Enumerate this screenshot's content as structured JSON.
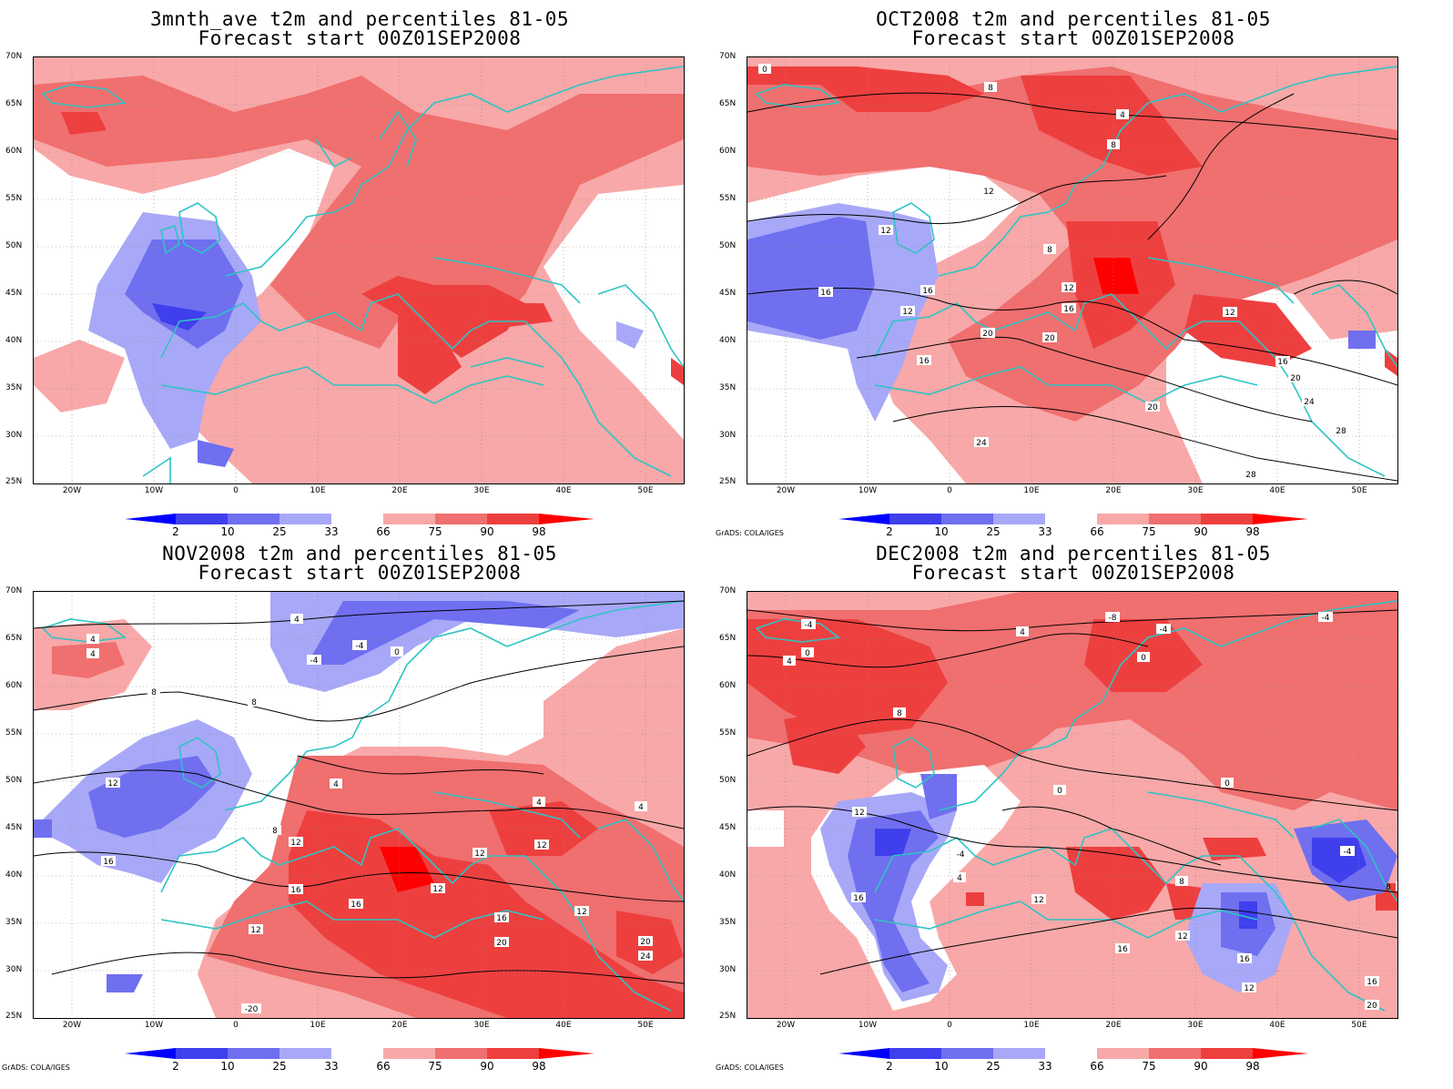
{
  "panels": [
    {
      "title": "3mnth_ave t2m and percentiles 81-05",
      "subtitle": "Forecast start 00Z01SEP2008",
      "contour_labels": []
    },
    {
      "title": "OCT2008 t2m and percentiles 81-05",
      "subtitle": "Forecast start 00Z01SEP2008",
      "contour_labels": [
        "0",
        "8",
        "4",
        "8",
        "12",
        "12",
        "8",
        "16",
        "16",
        "12",
        "20",
        "20",
        "16",
        "12",
        "16",
        "12",
        "16",
        "20",
        "24",
        "28",
        "20",
        "24",
        "28"
      ]
    },
    {
      "title": "NOV2008 t2m and percentiles 81-05",
      "subtitle": "Forecast start 00Z01SEP2008",
      "contour_labels": [
        "4",
        "4",
        "4",
        "-4",
        "-4",
        "0",
        "8",
        "8",
        "12",
        "4",
        "4",
        "4",
        "8",
        "12",
        "12",
        "12",
        "12",
        "16",
        "16",
        "16",
        "12",
        "16",
        "20",
        "12",
        "20",
        "24",
        "-20"
      ]
    },
    {
      "title": "DEC2008 t2m and percentiles 81-05",
      "subtitle": "Forecast start 00Z01SEP2008",
      "contour_labels": [
        "-4",
        "0",
        "4",
        "-8",
        "-4",
        "-4",
        "4",
        "0",
        "8",
        "0",
        "0",
        "12",
        "-4",
        "4",
        "8",
        "16",
        "12",
        "16",
        "12",
        "16",
        "-4",
        "8",
        "12",
        "16",
        "20"
      ]
    }
  ],
  "lat_labels": [
    "70N",
    "65N",
    "60N",
    "55N",
    "50N",
    "45N",
    "40N",
    "35N",
    "30N",
    "25N"
  ],
  "lon_labels": [
    "20W",
    "10W",
    "0",
    "10E",
    "20E",
    "30E",
    "40E",
    "50E"
  ],
  "colorbar": {
    "labels": [
      "2",
      "10",
      "25",
      "33",
      "66",
      "75",
      "90",
      "98"
    ],
    "colors": [
      "#0000ff",
      "#3f3fee",
      "#6f6ff0",
      "#a8a8f8",
      "#ffffff",
      "#f8a8a8",
      "#f06f6f",
      "#ee3f3f",
      "#ff0000"
    ]
  },
  "credit": "GrADS: COLA/IGES"
}
